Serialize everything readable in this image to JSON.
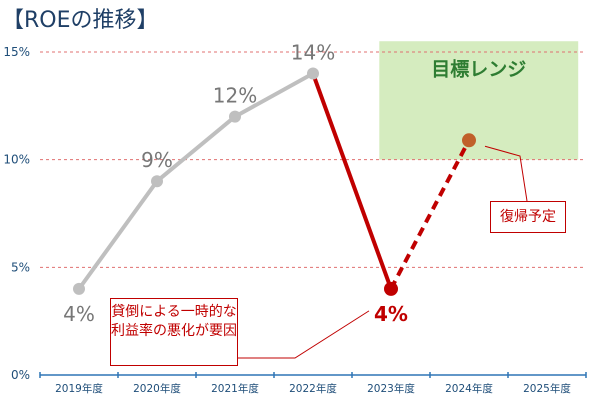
{
  "title": "【ROEの推移】",
  "chart_data": {
    "type": "line",
    "categories": [
      "2019年度",
      "2020年度",
      "2021年度",
      "2022年度",
      "2023年度",
      "2024年度",
      "2025年度"
    ],
    "ylim": [
      0,
      15
    ],
    "yticks": [
      {
        "value": 0,
        "label": "0%"
      },
      {
        "value": 5,
        "label": "5%"
      },
      {
        "value": 10,
        "label": "10%"
      },
      {
        "value": 15,
        "label": "15%"
      }
    ],
    "series": [
      {
        "values": [
          4,
          9,
          12,
          14,
          null,
          null,
          null
        ],
        "color": "#bfbfbf",
        "style": "solid"
      },
      {
        "values": [
          null,
          null,
          null,
          14,
          4,
          null,
          null
        ],
        "color": "#c00000",
        "style": "solid"
      },
      {
        "values": [
          null,
          null,
          null,
          null,
          4,
          10.9,
          null
        ],
        "color": "#c00000",
        "style": "dashed"
      }
    ],
    "point_labels": [
      {
        "index": 0,
        "value": 4,
        "text": "4%",
        "color": "#777777"
      },
      {
        "index": 1,
        "value": 9,
        "text": "9%",
        "color": "#777777"
      },
      {
        "index": 2,
        "value": 12,
        "text": "12%",
        "color": "#777777"
      },
      {
        "index": 3,
        "value": 14,
        "text": "14%",
        "color": "#777777"
      },
      {
        "index": 4,
        "value": 4,
        "text": "4%",
        "color": "#c00000"
      }
    ],
    "target_range": {
      "from": 10,
      "to": 15.5,
      "label": "目標レンジ",
      "color": "#d5ecbf"
    },
    "annotations": {
      "decline": "貸倒による一時的な利益率の悪化が要因",
      "recovery": "復帰予定"
    },
    "colors": {
      "past": "#bfbfbf",
      "accent": "#c00000",
      "forecast_point": "#c0602a",
      "axis": "#2e75b6",
      "grid": "#e07070"
    },
    "grid": true
  }
}
